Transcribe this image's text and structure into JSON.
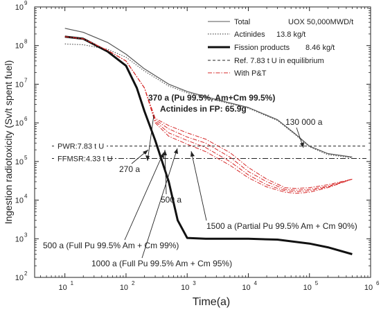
{
  "chart_data": {
    "type": "line",
    "title": "",
    "xlabel": "Time(a)",
    "ylabel": "Ingestion radiotoxicity (Sv/t spent fuel)",
    "x_scale": "log",
    "y_scale": "log",
    "xlim": [
      3.2,
      1000000
    ],
    "ylim": [
      100,
      1000000000
    ],
    "grid": false,
    "legend_position": "top-right",
    "x_ticks": [
      {
        "value": 10,
        "base": "10",
        "exp": "1"
      },
      {
        "value": 100,
        "base": "10",
        "exp": "2"
      },
      {
        "value": 1000,
        "base": "10",
        "exp": "3"
      },
      {
        "value": 10000,
        "base": "10",
        "exp": "4"
      },
      {
        "value": 100000,
        "base": "10",
        "exp": "5"
      },
      {
        "value": 1000000,
        "base": "10",
        "exp": "6"
      }
    ],
    "y_ticks": [
      {
        "value": 100,
        "base": "10",
        "exp": "2"
      },
      {
        "value": 1000,
        "base": "10",
        "exp": "3"
      },
      {
        "value": 10000,
        "base": "10",
        "exp": "4"
      },
      {
        "value": 100000,
        "base": "10",
        "exp": "5"
      },
      {
        "value": 1000000,
        "base": "10",
        "exp": "6"
      },
      {
        "value": 10000000,
        "base": "10",
        "exp": "7"
      },
      {
        "value": 100000000,
        "base": "10",
        "exp": "8"
      },
      {
        "value": 1000000000,
        "base": "10",
        "exp": "9"
      }
    ],
    "legend": [
      {
        "label": "Total",
        "style": "thin-solid",
        "value": "UOX 50,000MWD/t"
      },
      {
        "label": "Actinides",
        "style": "dotted",
        "value": "13.8 kg/t"
      },
      {
        "label": "Fission products",
        "style": "thick-solid",
        "value": "8.46 kg/t"
      },
      {
        "label": "Ref. 7.83 t U in equilibrium",
        "style": "dashed",
        "value": ""
      },
      {
        "label": "With P&T",
        "style": "red-dashdot",
        "value": ""
      }
    ],
    "series": [
      {
        "name": "Total",
        "style": "thin-solid",
        "points": [
          [
            10,
            280000000
          ],
          [
            20,
            220000000
          ],
          [
            50,
            120000000
          ],
          [
            100,
            60000000
          ],
          [
            200,
            25000000
          ],
          [
            500,
            10000000
          ],
          [
            1000,
            6500000
          ],
          [
            3000,
            4000000
          ],
          [
            10000,
            2500000
          ],
          [
            30000,
            1200000
          ],
          [
            60000,
            500000
          ],
          [
            100000,
            250000
          ],
          [
            200000,
            160000
          ],
          [
            500000,
            130000
          ]
        ]
      },
      {
        "name": "Actinides",
        "style": "dotted",
        "points": [
          [
            10,
            110000000
          ],
          [
            20,
            105000000
          ],
          [
            50,
            80000000
          ],
          [
            100,
            50000000
          ],
          [
            200,
            22000000
          ],
          [
            500,
            9000000
          ],
          [
            1000,
            6000000
          ],
          [
            3000,
            3800000
          ],
          [
            10000,
            2400000
          ],
          [
            30000,
            1150000
          ],
          [
            60000,
            480000
          ],
          [
            100000,
            240000
          ],
          [
            200000,
            150000
          ],
          [
            500000,
            125000
          ]
        ]
      },
      {
        "name": "Fission products",
        "style": "thick-solid",
        "points": [
          [
            10,
            170000000
          ],
          [
            20,
            150000000
          ],
          [
            50,
            70000000
          ],
          [
            100,
            30000000
          ],
          [
            150,
            8000000
          ],
          [
            200,
            2000000
          ],
          [
            300,
            350000
          ],
          [
            500,
            30000
          ],
          [
            700,
            3000
          ],
          [
            1000,
            1050
          ],
          [
            2000,
            1000
          ],
          [
            10000,
            1000
          ],
          [
            30000,
            950
          ],
          [
            100000,
            750
          ],
          [
            200000,
            600
          ],
          [
            500000,
            400
          ]
        ]
      },
      {
        "name": "With P&T (a)",
        "style": "red-dashdot",
        "points": [
          [
            10,
            170000000
          ],
          [
            20,
            150000000
          ],
          [
            50,
            75000000
          ],
          [
            100,
            40000000
          ],
          [
            200,
            8000000
          ],
          [
            300,
            1000000
          ],
          [
            500,
            450000
          ],
          [
            1000,
            280000
          ],
          [
            2000,
            180000
          ],
          [
            5000,
            80000
          ],
          [
            10000,
            38000
          ],
          [
            20000,
            22000
          ],
          [
            40000,
            16000
          ],
          [
            60000,
            15000
          ],
          [
            100000,
            16000
          ],
          [
            200000,
            21000
          ],
          [
            500000,
            35000
          ]
        ]
      },
      {
        "name": "With P&T (b)",
        "style": "red-dashdot",
        "points": [
          [
            10,
            170000000
          ],
          [
            20,
            150000000
          ],
          [
            50,
            75000000
          ],
          [
            100,
            40000000
          ],
          [
            200,
            8000000
          ],
          [
            300,
            1100000
          ],
          [
            500,
            550000
          ],
          [
            1000,
            350000
          ],
          [
            2000,
            230000
          ],
          [
            5000,
            100000
          ],
          [
            10000,
            45000
          ],
          [
            20000,
            25000
          ],
          [
            40000,
            17500
          ],
          [
            60000,
            16500
          ],
          [
            100000,
            17500
          ],
          [
            200000,
            22000
          ],
          [
            500000,
            35000
          ]
        ]
      },
      {
        "name": "With P&T (c)",
        "style": "red-dashdot",
        "points": [
          [
            10,
            170000000
          ],
          [
            20,
            150000000
          ],
          [
            50,
            75000000
          ],
          [
            100,
            40000000
          ],
          [
            200,
            8000000
          ],
          [
            300,
            1200000
          ],
          [
            500,
            700000
          ],
          [
            1000,
            430000
          ],
          [
            2000,
            300000
          ],
          [
            5000,
            130000
          ],
          [
            10000,
            55000
          ],
          [
            20000,
            30000
          ],
          [
            40000,
            19000
          ],
          [
            60000,
            18000
          ],
          [
            100000,
            19000
          ],
          [
            200000,
            23000
          ],
          [
            500000,
            35000
          ]
        ]
      },
      {
        "name": "With P&T (d)",
        "style": "red-dashdot",
        "points": [
          [
            10,
            170000000
          ],
          [
            20,
            150000000
          ],
          [
            50,
            75000000
          ],
          [
            100,
            40000000
          ],
          [
            200,
            8000000
          ],
          [
            300,
            1300000
          ],
          [
            500,
            850000
          ],
          [
            1000,
            550000
          ],
          [
            2000,
            380000
          ],
          [
            5000,
            170000
          ],
          [
            10000,
            70000
          ],
          [
            20000,
            35000
          ],
          [
            40000,
            21000
          ],
          [
            60000,
            20000
          ],
          [
            100000,
            21000
          ],
          [
            200000,
            25000
          ],
          [
            500000,
            35000
          ]
        ]
      }
    ],
    "reference_lines": [
      {
        "label": "PWR:7.83 t U",
        "y": 250000,
        "style": "dashed"
      },
      {
        "label": "FFMSR:4.33 t U",
        "y": 120000,
        "style": "dashdot"
      }
    ],
    "annotations": {
      "equal_370_line1": "370 a (Pu 99.5%, Am+Cm 99.5%)",
      "equal_370_line2": "Actinides in FP: 65.9g",
      "t_130000": "130 000 a",
      "t_270": "270 a",
      "t_500": "500 a",
      "t_1500": "1500 a (Partial Pu 99.5% Am + Cm 90%)",
      "t_500_full": "500 a (Full Pu 99.5% Am + Cm 99%)",
      "t_1000_full": "1000 a (Full Pu 99.5% Am + Cm 95%)"
    }
  }
}
